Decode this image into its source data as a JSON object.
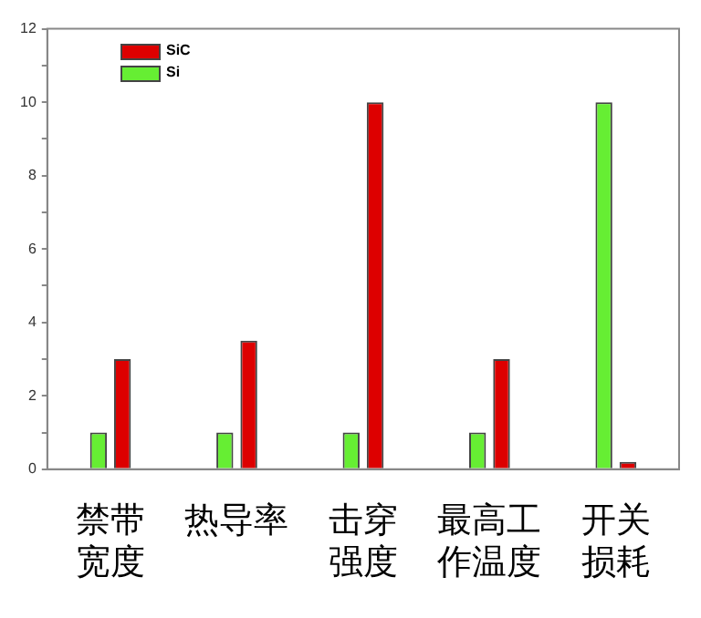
{
  "chart_data": {
    "type": "bar",
    "categories": [
      "禁带宽度",
      "热导率",
      "击穿强度",
      "最高工作温度",
      "开关损耗"
    ],
    "series": [
      {
        "name": "Si",
        "color": "#66ee33",
        "values": [
          1,
          1,
          1,
          1,
          10
        ]
      },
      {
        "name": "SiC",
        "color": "#dd0000",
        "values": [
          3,
          3.5,
          10,
          3,
          0.2
        ]
      }
    ],
    "ylim": [
      0,
      12
    ],
    "yticks": [
      0,
      {
        "value": 1,
        "label": null
      },
      2,
      {
        "value": 3,
        "label": null
      },
      4,
      {
        "value": 5,
        "label": null
      },
      6,
      {
        "value": 7,
        "label": null
      },
      8,
      {
        "value": 9,
        "label": null
      },
      10,
      {
        "value": 11,
        "label": null
      },
      12
    ],
    "grid": false,
    "legend": "top left"
  }
}
